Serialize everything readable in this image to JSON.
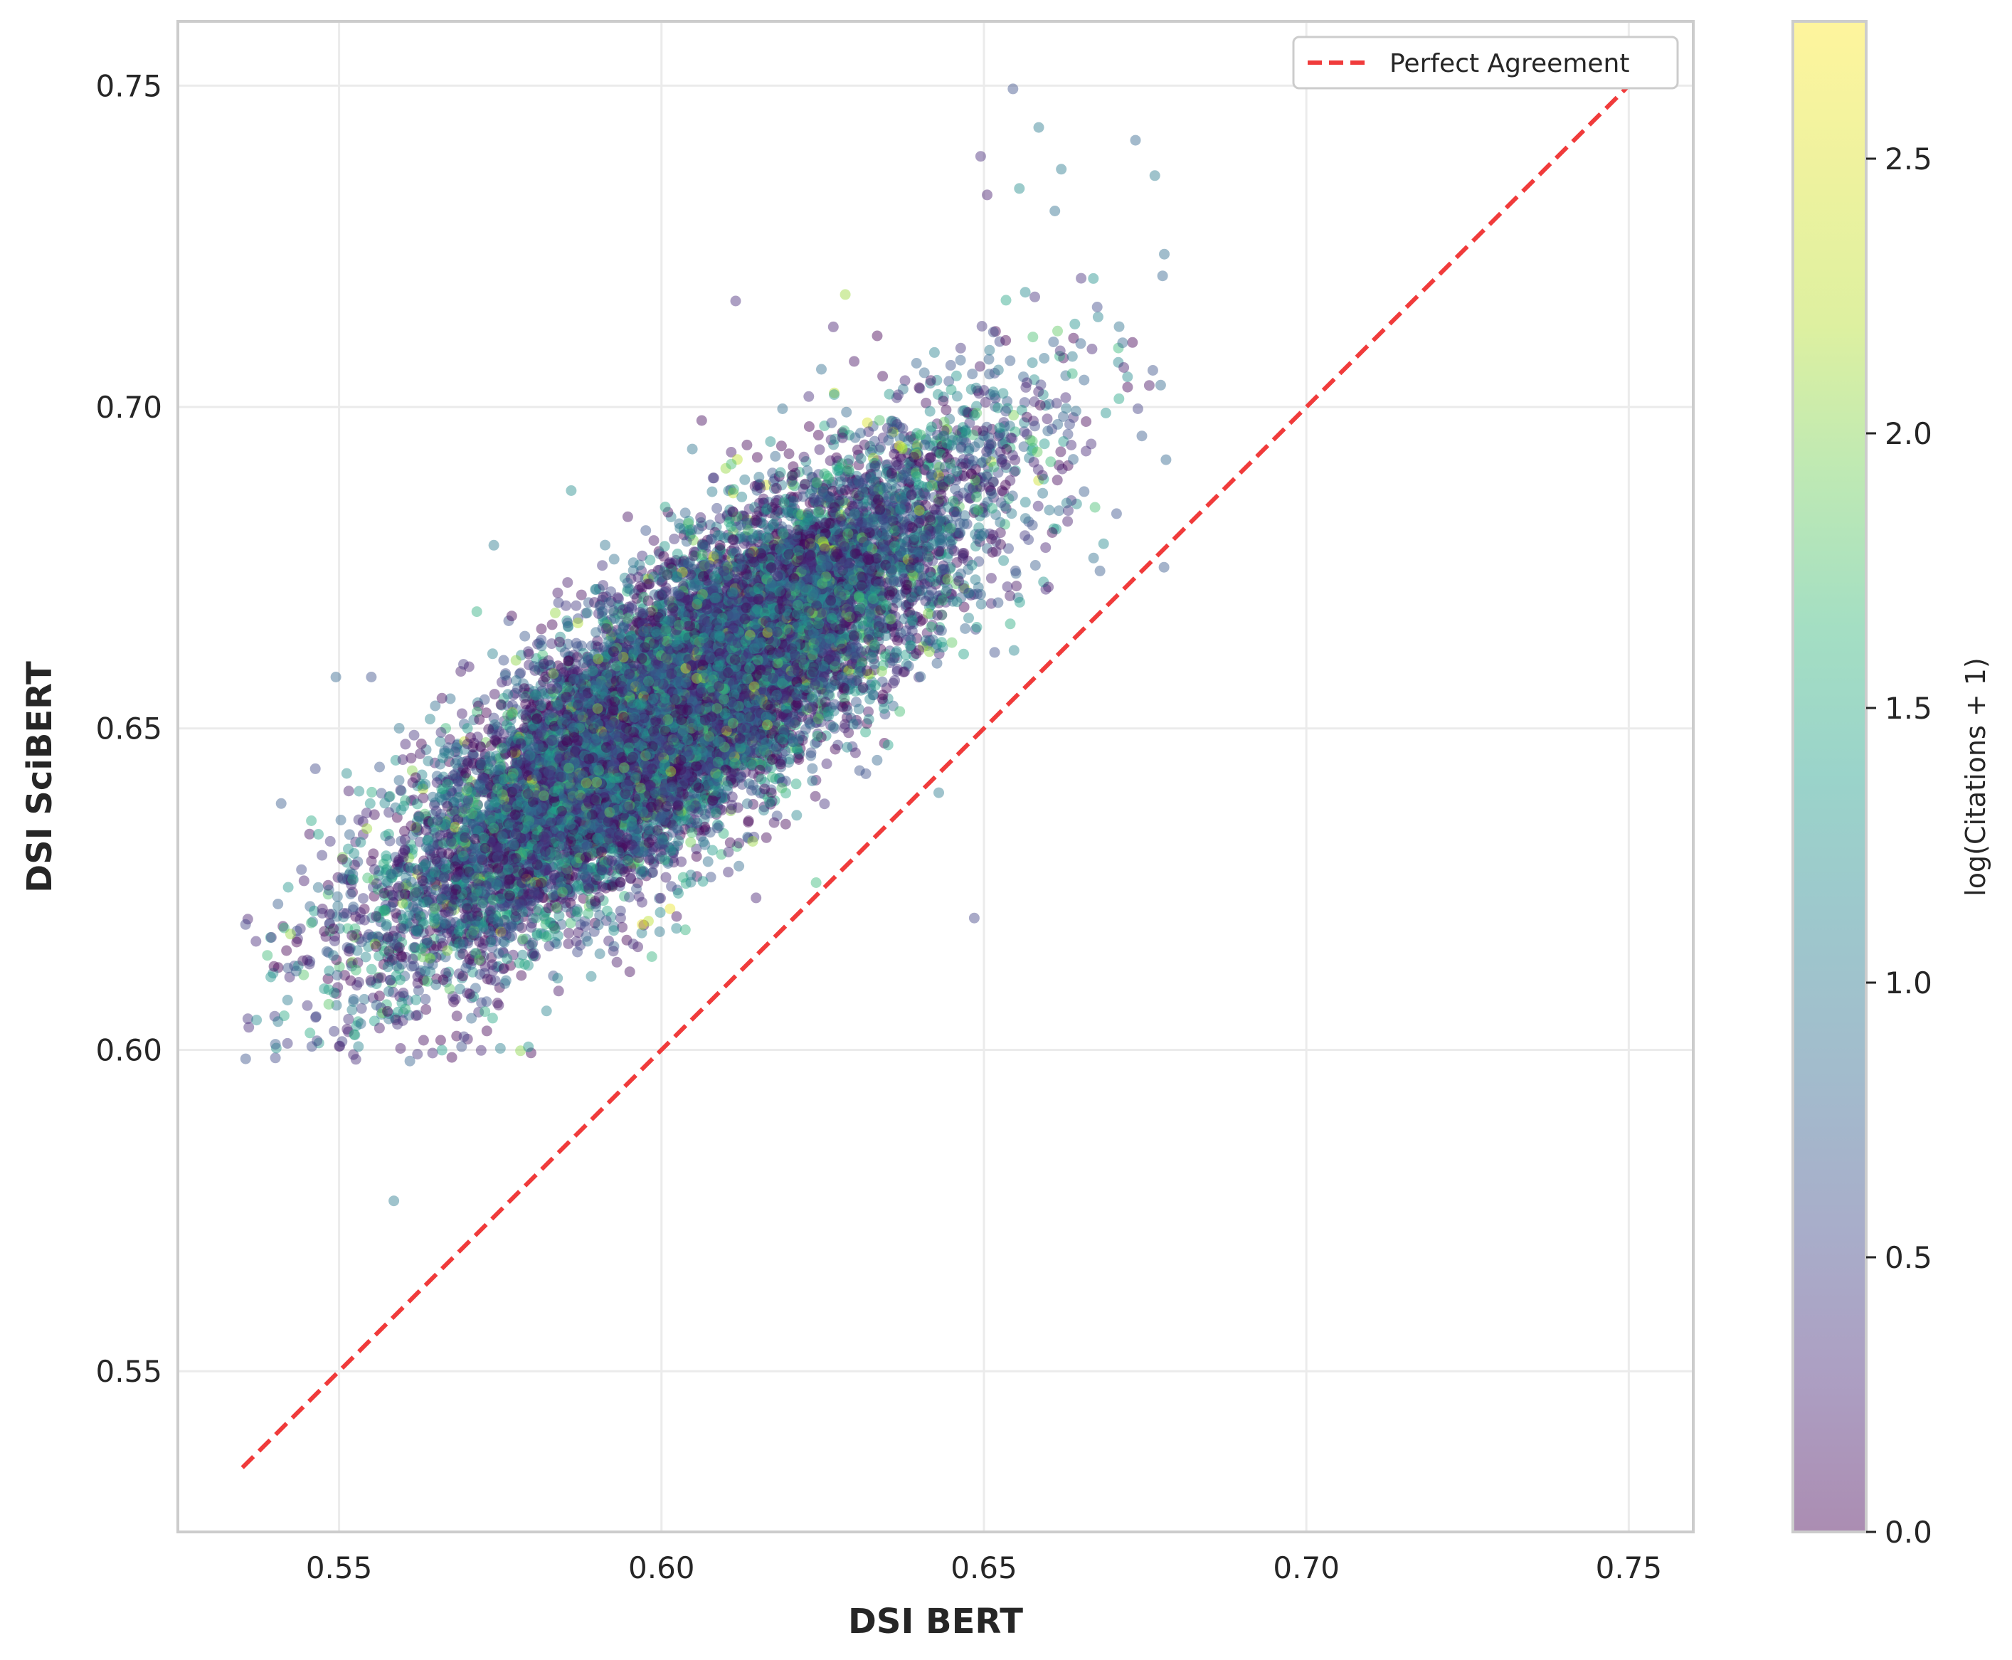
{
  "chart_data": {
    "type": "scatter",
    "title": "",
    "xlabel": "DSI BERT",
    "ylabel": "DSI SciBERT",
    "xlim": [
      0.525,
      0.76
    ],
    "ylim": [
      0.525,
      0.76
    ],
    "x_ticks": [
      "0.55",
      "0.60",
      "0.65",
      "0.70",
      "0.75"
    ],
    "y_ticks": [
      "0.55",
      "0.60",
      "0.65",
      "0.70",
      "0.75"
    ],
    "grid": true,
    "legend": {
      "placement": "top-right",
      "entries": [
        "Perfect Agreement"
      ]
    },
    "reference_line": {
      "name": "Perfect Agreement",
      "from": [
        0.535,
        0.535
      ],
      "to": [
        0.75,
        0.75
      ],
      "color": "#e41a1c",
      "style": "dashed"
    },
    "colorbar": {
      "label": "log(Citations + 1)",
      "range": [
        0,
        2.75
      ],
      "ticks": [
        "0.0",
        "0.5",
        "1.0",
        "1.5",
        "2.0",
        "2.5"
      ],
      "colormap": "viridis"
    },
    "point_count": 14000,
    "distribution": {
      "x_mean": 0.603,
      "x_sd": 0.022,
      "y_mean": 0.654,
      "y_sd": 0.019,
      "correlation": 0.83
    },
    "notable_points": [
      {
        "x": 0.5585,
        "y": 0.5765,
        "c": 1.0
      },
      {
        "x": 0.6485,
        "y": 0.6205,
        "c": 0.5
      },
      {
        "x": 0.6545,
        "y": 0.7495,
        "c": 0.6
      },
      {
        "x": 0.6585,
        "y": 0.7435,
        "c": 1.0
      },
      {
        "x": 0.6735,
        "y": 0.7415,
        "c": 0.8
      },
      {
        "x": 0.6765,
        "y": 0.736,
        "c": 1.0
      },
      {
        "x": 0.6495,
        "y": 0.739,
        "c": 0.3
      },
      {
        "x": 0.6505,
        "y": 0.733,
        "c": 0.2
      },
      {
        "x": 0.662,
        "y": 0.737,
        "c": 1.0
      },
      {
        "x": 0.6555,
        "y": 0.734,
        "c": 1.2
      },
      {
        "x": 0.661,
        "y": 0.7305,
        "c": 0.9
      },
      {
        "x": 0.6285,
        "y": 0.7175,
        "c": 2.1
      },
      {
        "x": 0.6115,
        "y": 0.7165,
        "c": 0.3
      },
      {
        "x": 0.6715,
        "y": 0.71,
        "c": 0.8
      },
      {
        "x": 0.6745,
        "y": 0.6955,
        "c": 0.7
      },
      {
        "x": 0.536,
        "y": 0.6035,
        "c": 0.3
      },
      {
        "x": 0.542,
        "y": 0.601,
        "c": 0.4
      },
      {
        "x": 0.5645,
        "y": 0.5995,
        "c": 0.3
      },
      {
        "x": 0.569,
        "y": 0.6005,
        "c": 0.6
      },
      {
        "x": 0.553,
        "y": 0.6005,
        "c": 1.1
      },
      {
        "x": 0.5355,
        "y": 0.6195,
        "c": 0.5
      },
      {
        "x": 0.5395,
        "y": 0.6175,
        "c": 0.4
      },
      {
        "x": 0.555,
        "y": 0.658,
        "c": 0.6
      },
      {
        "x": 0.5495,
        "y": 0.658,
        "c": 0.8
      },
      {
        "x": 0.574,
        "y": 0.6785,
        "c": 1.0
      },
      {
        "x": 0.586,
        "y": 0.687,
        "c": 1.2
      },
      {
        "x": 0.667,
        "y": 0.6765,
        "c": 0.9
      },
      {
        "x": 0.668,
        "y": 0.6745,
        "c": 0.7
      },
      {
        "x": 0.66,
        "y": 0.672,
        "c": 0.2
      },
      {
        "x": 0.643,
        "y": 0.64,
        "c": 1.0
      },
      {
        "x": 0.597,
        "y": 0.6195,
        "c": 2.6
      },
      {
        "x": 0.5985,
        "y": 0.6145,
        "c": 1.6
      }
    ]
  }
}
